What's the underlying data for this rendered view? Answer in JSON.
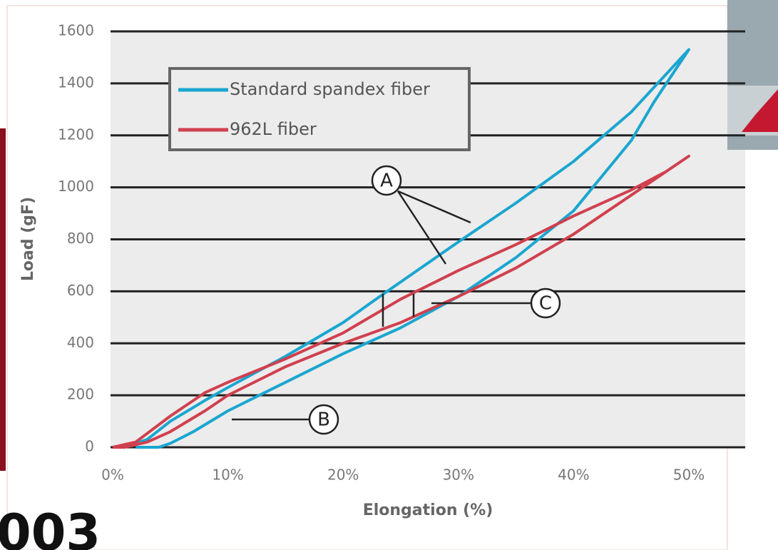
{
  "chart_data": {
    "type": "line",
    "xlabel": "Elongation (%)",
    "ylabel": "Load (gF)",
    "xlim": [
      0,
      50
    ],
    "ylim": [
      0,
      1600
    ],
    "xticks": [
      {
        "value": 0,
        "label": "0%"
      },
      {
        "value": 10,
        "label": "10%"
      },
      {
        "value": 20,
        "label": "20%"
      },
      {
        "value": 30,
        "label": "30%"
      },
      {
        "value": 40,
        "label": "40%"
      },
      {
        "value": 50,
        "label": "50%"
      }
    ],
    "yticks": [
      0,
      200,
      400,
      600,
      800,
      1000,
      1200,
      1400,
      1600
    ],
    "grid": true,
    "legend": "upper left",
    "series": [
      {
        "name": "Standard spandex fiber",
        "color": "#1aa6d0",
        "x": [
          1,
          3,
          5,
          8,
          10,
          15,
          20,
          23.5,
          30,
          35,
          40,
          45,
          50,
          47,
          45,
          40,
          35,
          30,
          25,
          20,
          15,
          10,
          7,
          5,
          4,
          2
        ],
        "values": [
          0,
          30,
          100,
          180,
          230,
          350,
          480,
          590,
          790,
          940,
          1100,
          1290,
          1530,
          1330,
          1180,
          910,
          730,
          580,
          460,
          360,
          250,
          140,
          60,
          15,
          0,
          0
        ]
      },
      {
        "name": "962L fiber",
        "color": "#d0404e",
        "x": [
          0,
          2,
          5,
          8,
          10,
          15,
          20,
          25,
          30,
          35,
          40,
          45,
          48,
          50,
          47,
          45,
          40,
          35,
          30,
          25,
          20,
          15,
          10,
          8,
          5,
          3,
          1,
          0
        ],
        "values": [
          0,
          20,
          120,
          210,
          250,
          340,
          440,
          570,
          680,
          780,
          890,
          990,
          1060,
          1120,
          1030,
          970,
          820,
          690,
          580,
          480,
          400,
          310,
          200,
          140,
          60,
          20,
          0,
          0
        ]
      }
    ],
    "annotations": [
      "A",
      "B",
      "C"
    ],
    "overlay_text": "003"
  }
}
